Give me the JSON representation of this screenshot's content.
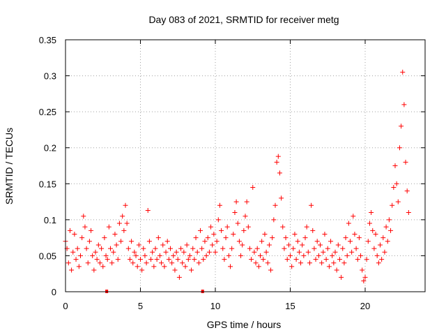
{
  "chart_data": {
    "type": "scatter",
    "title": "Day 083 of 2021, SRMTID for receiver metg",
    "xlabel": "GPS time / hours",
    "ylabel": "SRMTID / TECUs",
    "xlim": [
      0,
      24
    ],
    "ylim": [
      0,
      0.35
    ],
    "xticks": [
      0,
      5,
      10,
      15,
      20
    ],
    "xtick_labels": [
      "0",
      "5",
      "10",
      "15",
      "20"
    ],
    "yticks": [
      0,
      0.05,
      0.1,
      0.15,
      0.2,
      0.25,
      0.3,
      0.35
    ],
    "ytick_labels": [
      "0",
      "0.05",
      "0.1",
      "0.15",
      "0.2",
      "0.25",
      "0.3",
      "0.35"
    ],
    "grid": true,
    "marker": "+",
    "color": "#ff0000",
    "series": [
      {
        "name": "SRMTID",
        "points": [
          [
            0.0,
            0.07
          ],
          [
            0.1,
            0.06
          ],
          [
            0.2,
            0.04
          ],
          [
            0.3,
            0.085
          ],
          [
            0.4,
            0.03
          ],
          [
            0.5,
            0.055
          ],
          [
            0.6,
            0.08
          ],
          [
            0.7,
            0.045
          ],
          [
            0.8,
            0.06
          ],
          [
            0.9,
            0.035
          ],
          [
            1.0,
            0.05
          ],
          [
            1.1,
            0.075
          ],
          [
            1.2,
            0.105
          ],
          [
            1.3,
            0.09
          ],
          [
            1.4,
            0.06
          ],
          [
            1.5,
            0.04
          ],
          [
            1.6,
            0.07
          ],
          [
            1.7,
            0.085
          ],
          [
            1.8,
            0.05
          ],
          [
            1.9,
            0.03
          ],
          [
            2.0,
            0.055
          ],
          [
            2.1,
            0.045
          ],
          [
            2.2,
            0.065
          ],
          [
            2.3,
            0.04
          ],
          [
            2.4,
            0.06
          ],
          [
            2.5,
            0.035
          ],
          [
            2.6,
            0.075
          ],
          [
            2.7,
            0.05
          ],
          [
            2.8,
            0.045
          ],
          [
            2.9,
            0.09
          ],
          [
            3.0,
            0.06
          ],
          [
            3.1,
            0.04
          ],
          [
            3.2,
            0.055
          ],
          [
            3.3,
            0.08
          ],
          [
            3.4,
            0.065
          ],
          [
            3.5,
            0.045
          ],
          [
            3.6,
            0.095
          ],
          [
            3.7,
            0.07
          ],
          [
            3.8,
            0.105
          ],
          [
            3.9,
            0.085
          ],
          [
            4.0,
            0.12
          ],
          [
            4.1,
            0.095
          ],
          [
            4.2,
            0.06
          ],
          [
            4.3,
            0.045
          ],
          [
            4.4,
            0.07
          ],
          [
            4.5,
            0.04
          ],
          [
            4.6,
            0.055
          ],
          [
            4.7,
            0.05
          ],
          [
            4.8,
            0.035
          ],
          [
            4.9,
            0.065
          ],
          [
            5.0,
            0.045
          ],
          [
            5.1,
            0.03
          ],
          [
            5.2,
            0.06
          ],
          [
            5.3,
            0.05
          ],
          [
            5.4,
            0.04
          ],
          [
            5.5,
            0.113
          ],
          [
            5.6,
            0.07
          ],
          [
            5.7,
            0.045
          ],
          [
            5.8,
            0.055
          ],
          [
            5.9,
            0.035
          ],
          [
            6.0,
            0.06
          ],
          [
            6.1,
            0.045
          ],
          [
            6.2,
            0.075
          ],
          [
            6.3,
            0.05
          ],
          [
            6.4,
            0.04
          ],
          [
            6.5,
            0.065
          ],
          [
            6.6,
            0.035
          ],
          [
            6.7,
            0.055
          ],
          [
            6.8,
            0.07
          ],
          [
            6.9,
            0.045
          ],
          [
            7.0,
            0.06
          ],
          [
            7.1,
            0.04
          ],
          [
            7.2,
            0.05
          ],
          [
            7.3,
            0.03
          ],
          [
            7.4,
            0.055
          ],
          [
            7.5,
            0.045
          ],
          [
            7.6,
            0.02
          ],
          [
            7.7,
            0.06
          ],
          [
            7.8,
            0.04
          ],
          [
            7.9,
            0.055
          ],
          [
            8.0,
            0.035
          ],
          [
            8.1,
            0.065
          ],
          [
            8.2,
            0.045
          ],
          [
            8.3,
            0.05
          ],
          [
            8.4,
            0.03
          ],
          [
            8.5,
            0.06
          ],
          [
            8.6,
            0.045
          ],
          [
            8.7,
            0.075
          ],
          [
            8.8,
            0.055
          ],
          [
            8.9,
            0.04
          ],
          [
            9.0,
            0.085
          ],
          [
            9.1,
            0.06
          ],
          [
            9.2,
            0.045
          ],
          [
            9.3,
            0.07
          ],
          [
            9.4,
            0.05
          ],
          [
            9.5,
            0.075
          ],
          [
            9.6,
            0.055
          ],
          [
            9.7,
            0.09
          ],
          [
            9.8,
            0.065
          ],
          [
            9.9,
            0.08
          ],
          [
            10.0,
            0.055
          ],
          [
            10.1,
            0.07
          ],
          [
            10.2,
            0.1
          ],
          [
            10.3,
            0.12
          ],
          [
            10.4,
            0.085
          ],
          [
            10.5,
            0.06
          ],
          [
            10.6,
            0.045
          ],
          [
            10.7,
            0.075
          ],
          [
            10.8,
            0.09
          ],
          [
            10.9,
            0.05
          ],
          [
            11.0,
            0.035
          ],
          [
            11.1,
            0.06
          ],
          [
            11.2,
            0.08
          ],
          [
            11.3,
            0.11
          ],
          [
            11.4,
            0.125
          ],
          [
            11.5,
            0.095
          ],
          [
            11.6,
            0.07
          ],
          [
            11.7,
            0.05
          ],
          [
            11.8,
            0.065
          ],
          [
            11.9,
            0.085
          ],
          [
            12.0,
            0.105
          ],
          [
            12.1,
            0.125
          ],
          [
            12.2,
            0.09
          ],
          [
            12.3,
            0.06
          ],
          [
            12.4,
            0.045
          ],
          [
            12.5,
            0.145
          ],
          [
            12.6,
            0.055
          ],
          [
            12.7,
            0.04
          ],
          [
            12.8,
            0.06
          ],
          [
            12.9,
            0.035
          ],
          [
            13.0,
            0.05
          ],
          [
            13.1,
            0.07
          ],
          [
            13.2,
            0.045
          ],
          [
            13.3,
            0.08
          ],
          [
            13.4,
            0.055
          ],
          [
            13.5,
            0.04
          ],
          [
            13.6,
            0.065
          ],
          [
            13.7,
            0.03
          ],
          [
            13.8,
            0.075
          ],
          [
            13.9,
            0.1
          ],
          [
            14.0,
            0.12
          ],
          [
            14.1,
            0.18
          ],
          [
            14.2,
            0.188
          ],
          [
            14.3,
            0.165
          ],
          [
            14.4,
            0.13
          ],
          [
            14.5,
            0.09
          ],
          [
            14.6,
            0.06
          ],
          [
            14.7,
            0.075
          ],
          [
            14.8,
            0.045
          ],
          [
            14.9,
            0.065
          ],
          [
            15.0,
            0.05
          ],
          [
            15.1,
            0.035
          ],
          [
            15.2,
            0.06
          ],
          [
            15.3,
            0.08
          ],
          [
            15.4,
            0.045
          ],
          [
            15.5,
            0.07
          ],
          [
            15.6,
            0.055
          ],
          [
            15.7,
            0.04
          ],
          [
            15.8,
            0.065
          ],
          [
            15.9,
            0.05
          ],
          [
            16.0,
            0.075
          ],
          [
            16.1,
            0.09
          ],
          [
            16.2,
            0.055
          ],
          [
            16.3,
            0.04
          ],
          [
            16.4,
            0.12
          ],
          [
            16.5,
            0.085
          ],
          [
            16.6,
            0.06
          ],
          [
            16.7,
            0.045
          ],
          [
            16.8,
            0.07
          ],
          [
            16.9,
            0.05
          ],
          [
            17.0,
            0.065
          ],
          [
            17.1,
            0.04
          ],
          [
            17.2,
            0.055
          ],
          [
            17.3,
            0.08
          ],
          [
            17.4,
            0.045
          ],
          [
            17.5,
            0.06
          ],
          [
            17.6,
            0.035
          ],
          [
            17.7,
            0.07
          ],
          [
            17.8,
            0.05
          ],
          [
            17.9,
            0.04
          ],
          [
            18.0,
            0.055
          ],
          [
            18.1,
            0.03
          ],
          [
            18.2,
            0.065
          ],
          [
            18.3,
            0.045
          ],
          [
            18.4,
            0.02
          ],
          [
            18.5,
            0.06
          ],
          [
            18.6,
            0.04
          ],
          [
            18.7,
            0.075
          ],
          [
            18.8,
            0.05
          ],
          [
            18.9,
            0.095
          ],
          [
            19.0,
            0.07
          ],
          [
            19.1,
            0.055
          ],
          [
            19.2,
            0.105
          ],
          [
            19.3,
            0.08
          ],
          [
            19.4,
            0.06
          ],
          [
            19.5,
            0.045
          ],
          [
            19.6,
            0.075
          ],
          [
            19.7,
            0.05
          ],
          [
            19.8,
            0.03
          ],
          [
            19.9,
            0.015
          ],
          [
            20.0,
            0.02
          ],
          [
            20.1,
            0.045
          ],
          [
            20.2,
            0.07
          ],
          [
            20.3,
            0.095
          ],
          [
            20.4,
            0.11
          ],
          [
            20.5,
            0.085
          ],
          [
            20.6,
            0.06
          ],
          [
            20.7,
            0.08
          ],
          [
            20.8,
            0.05
          ],
          [
            20.9,
            0.04
          ],
          [
            21.0,
            0.065
          ],
          [
            21.1,
            0.045
          ],
          [
            21.2,
            0.075
          ],
          [
            21.3,
            0.055
          ],
          [
            21.4,
            0.09
          ],
          [
            21.5,
            0.07
          ],
          [
            21.6,
            0.1
          ],
          [
            21.7,
            0.085
          ],
          [
            21.8,
            0.12
          ],
          [
            21.9,
            0.145
          ],
          [
            22.0,
            0.175
          ],
          [
            22.1,
            0.15
          ],
          [
            22.2,
            0.125
          ],
          [
            22.3,
            0.2
          ],
          [
            22.4,
            0.23
          ],
          [
            22.5,
            0.305
          ],
          [
            22.6,
            0.26
          ],
          [
            22.7,
            0.18
          ],
          [
            22.8,
            0.14
          ],
          [
            22.9,
            0.11
          ]
        ]
      }
    ],
    "axis_markers": [
      {
        "x": 2.75,
        "y": 0
      },
      {
        "x": 9.15,
        "y": 0
      }
    ]
  }
}
